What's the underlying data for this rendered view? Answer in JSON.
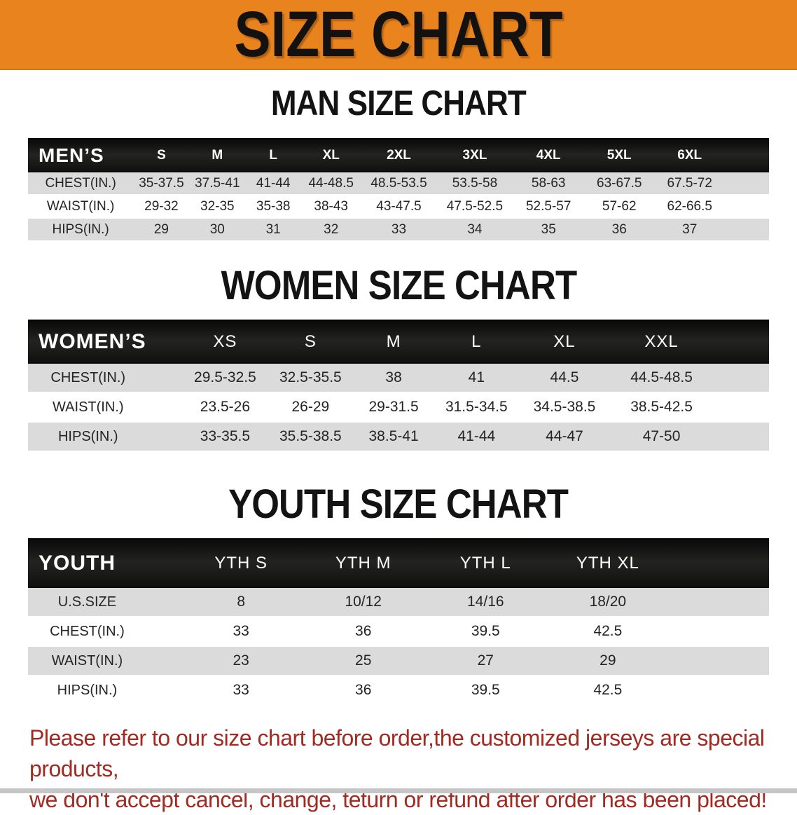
{
  "banner": {
    "title": "SIZE CHART",
    "bg_color": "#E8831E"
  },
  "sections": {
    "men": {
      "title": "MAN SIZE CHART"
    },
    "women": {
      "title": "WOMEN SIZE CHART"
    },
    "youth": {
      "title": "YOUTH SIZE CHART"
    }
  },
  "tables": {
    "men": {
      "header": [
        "MEN’S",
        "S",
        "M",
        "L",
        "XL",
        "2XL",
        "3XL",
        "4XL",
        "5XL",
        "6XL"
      ],
      "rows": [
        [
          "CHEST(IN.)",
          "35-37.5",
          "37.5-41",
          "41-44",
          "44-48.5",
          "48.5-53.5",
          "53.5-58",
          "58-63",
          "63-67.5",
          "67.5-72"
        ],
        [
          "WAIST(IN.)",
          "29-32",
          "32-35",
          "35-38",
          "38-43",
          "43-47.5",
          "47.5-52.5",
          "52.5-57",
          "57-62",
          "62-66.5"
        ],
        [
          "HIPS(IN.)",
          "29",
          "30",
          "31",
          "32",
          "33",
          "34",
          "35",
          "36",
          "37"
        ]
      ]
    },
    "women": {
      "header": [
        "WOMEN’S",
        "XS",
        "S",
        "M",
        "L",
        "XL",
        "XXL"
      ],
      "rows": [
        [
          "CHEST(IN.)",
          "29.5-32.5",
          "32.5-35.5",
          "38",
          "41",
          "44.5",
          "44.5-48.5"
        ],
        [
          "WAIST(IN.)",
          "23.5-26",
          "26-29",
          "29-31.5",
          "31.5-34.5",
          "34.5-38.5",
          "38.5-42.5"
        ],
        [
          "HIPS(IN.)",
          "33-35.5",
          "35.5-38.5",
          "38.5-41",
          "41-44",
          "44-47",
          "47-50"
        ]
      ]
    },
    "youth": {
      "header": [
        "YOUTH",
        "YTH S",
        "YTH M",
        "YTH L",
        "YTH XL"
      ],
      "rows": [
        [
          "U.S.SIZE",
          "8",
          "10/12",
          "14/16",
          "18/20"
        ],
        [
          "CHEST(IN.)",
          "33",
          "36",
          "39.5",
          "42.5"
        ],
        [
          "WAIST(IN.)",
          "23",
          "25",
          "27",
          "29"
        ],
        [
          "HIPS(IN.)",
          "33",
          "36",
          "39.5",
          "42.5"
        ]
      ]
    }
  },
  "note": {
    "color": "#A12B22",
    "line1": "Please refer to our size chart before order,the customized jerseys are special products,",
    "line2": "we don't accept cancel, change, teturn or refund after order has been placed!"
  }
}
